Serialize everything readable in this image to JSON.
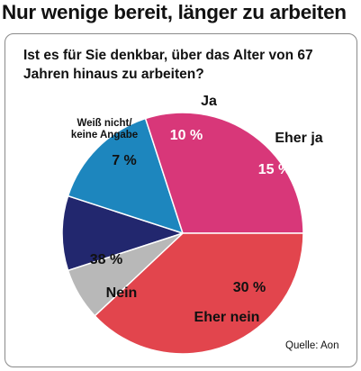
{
  "title": "Nur wenige bereit, länger zu arbeiten",
  "source": "Quelle: Aon",
  "chart_data": {
    "type": "pie",
    "title": "Ist es für Sie denkbar, über das Alter von 67 Jahren hinaus zu arbeiten?",
    "slices": [
      {
        "label": "Ja",
        "value": 10,
        "value_label": "10 %",
        "color": "#22276e"
      },
      {
        "label": "Eher ja",
        "value": 15,
        "value_label": "15 %",
        "color": "#1d86be"
      },
      {
        "label": "Eher nein",
        "value": 30,
        "value_label": "30 %",
        "color": "#d83779"
      },
      {
        "label": "Nein",
        "value": 38,
        "value_label": "38 %",
        "color": "#e2454d"
      },
      {
        "label": "Weiß nicht/ keine Angabe",
        "value": 7,
        "value_label": "7 %",
        "color": "#b8b8b8"
      }
    ]
  }
}
